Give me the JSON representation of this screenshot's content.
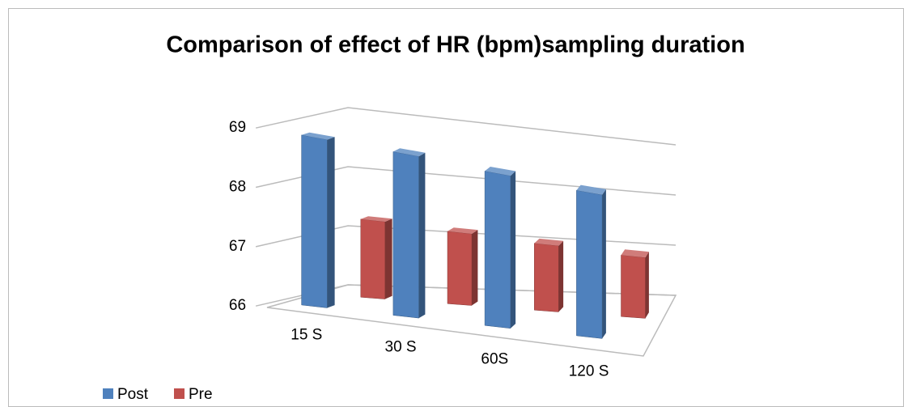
{
  "chart_data": {
    "type": "bar",
    "title": "Comparison of effect of HR (bpm)sampling duration",
    "categories": [
      "15 S",
      "30 S",
      "60S",
      "120 S"
    ],
    "series": [
      {
        "name": "Post",
        "color": "#4f81bd",
        "values": [
          68.9,
          68.9,
          68.85,
          68.8
        ]
      },
      {
        "name": "Pre",
        "color": "#c0504d",
        "values": [
          67.35,
          67.3,
          67.25,
          67.2
        ]
      }
    ],
    "ylim": [
      66,
      69
    ],
    "yticks": [
      66,
      67,
      68,
      69
    ],
    "grid": true,
    "legend": "bottom-left"
  }
}
